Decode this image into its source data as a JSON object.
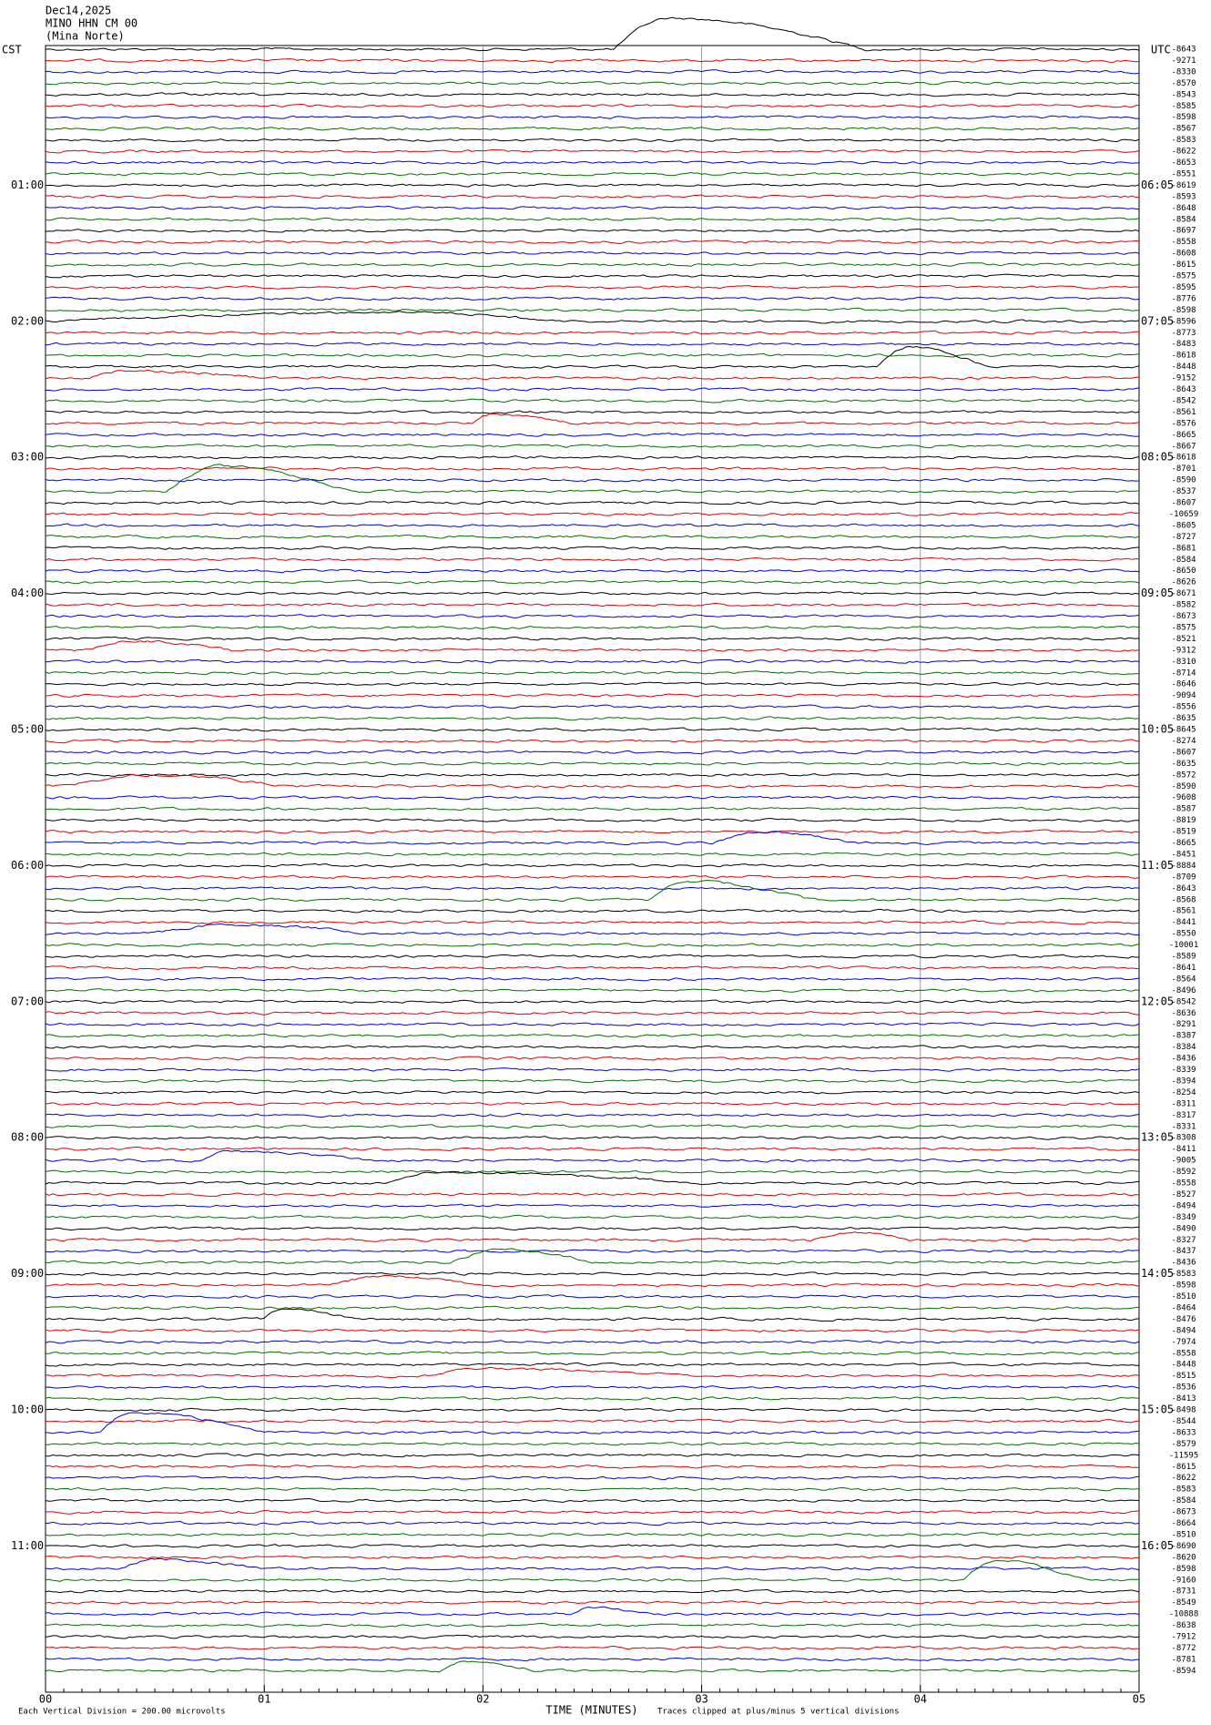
{
  "header": {
    "date": "Dec14,2025",
    "station": "MINO HHN CM 00",
    "location": "(Mina Norte)"
  },
  "left_zone": "CST",
  "right_zone": "UTC",
  "left_hours": [
    "01:00",
    "02:00",
    "03:00",
    "04:00",
    "05:00",
    "06:00",
    "07:00",
    "08:00",
    "09:00",
    "10:00",
    "11:00"
  ],
  "right_hours": [
    "06:05",
    "07:05",
    "08:05",
    "09:05",
    "10:05",
    "11:05",
    "12:05",
    "13:05",
    "14:05",
    "15:05",
    "16:05"
  ],
  "trace_offsets": [
    "-8643",
    "-9271",
    "-8330",
    "-8570",
    "-8543",
    "-8585",
    "-8598",
    "-8567",
    "-8583",
    "-8622",
    "-8653",
    "-8551",
    "-8619",
    "-8593",
    "-8648",
    "-8584",
    "-8697",
    "-8558",
    "-8608",
    "-8615",
    "-8575",
    "-8595",
    "-8776",
    "-8598",
    "-8596",
    "-8773",
    "-8483",
    "-8618",
    "-8448",
    "-9152",
    "-8643",
    "-8542",
    "-8561",
    "-8576",
    "-8665",
    "-8667",
    "-8618",
    "-8701",
    "-8590",
    "-8537",
    "-8607",
    "-10659",
    "-8605",
    "-8727",
    "-8681",
    "-8584",
    "-8650",
    "-8626",
    "-8671",
    "-8582",
    "-8673",
    "-8575",
    "-8521",
    "-9312",
    "-8310",
    "-8714",
    "-8646",
    "-9094",
    "-8556",
    "-8635",
    "-8645",
    "-8274",
    "-8607",
    "-8635",
    "-8572",
    "-8590",
    "-9608",
    "-8587",
    "-8819",
    "-8519",
    "-8665",
    "-8451",
    "-8884",
    "-8709",
    "-8643",
    "-8568",
    "-8561",
    "-8441",
    "-8550",
    "-10001",
    "-8589",
    "-8641",
    "-8564",
    "-8496",
    "-8542",
    "-8636",
    "-8291",
    "-8387",
    "-8384",
    "-8436",
    "-8339",
    "-8394",
    "-8254",
    "-8311",
    "-8317",
    "-8331",
    "-8308",
    "-8411",
    "-9005",
    "-8592",
    "-8558",
    "-8527",
    "-8494",
    "-8349",
    "-8490",
    "-8327",
    "-8437",
    "-8436",
    "-8583",
    "-8598",
    "-8510",
    "-8464",
    "-8476",
    "-8494",
    "-7974",
    "-8558",
    "-8448",
    "-8515",
    "-8536",
    "-8413",
    "-8498",
    "-8544",
    "-8633",
    "-8579",
    "-11595",
    "-8615",
    "-8622",
    "-8583",
    "-8584",
    "-8673",
    "-8664",
    "-8510",
    "-8690",
    "-8620",
    "-8598",
    "-9160",
    "-8731",
    "-8549",
    "-10888",
    "-8638",
    "-7912",
    "-8772",
    "-8781",
    "-8594"
  ],
  "x_ticks": [
    "00",
    "01",
    "02",
    "03",
    "04",
    "05"
  ],
  "x_title": "TIME (MINUTES)",
  "scale_note": "Each Vertical Division =  200.00 microvolts",
  "clip_note": "Traces clipped at plus/minus 5 vertical divisions"
}
